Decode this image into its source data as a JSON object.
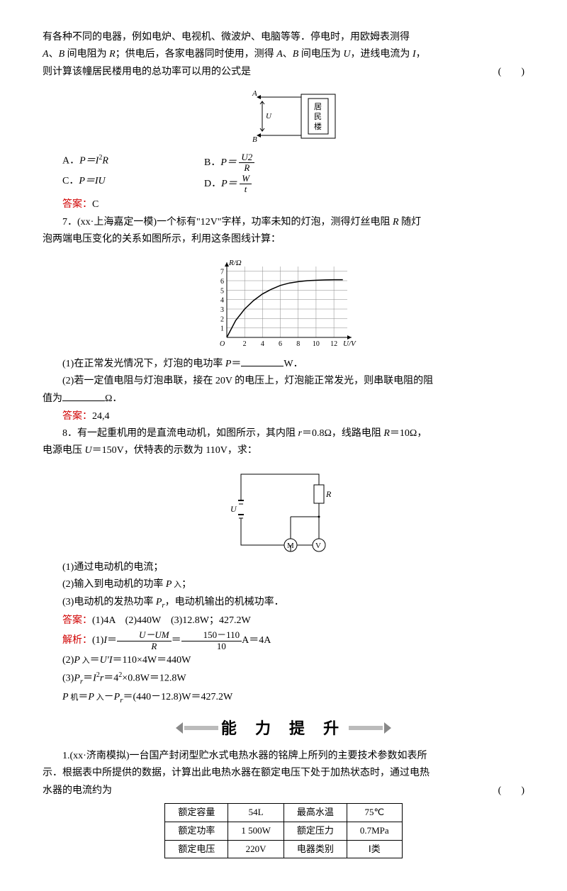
{
  "intro": {
    "l1": "有各种不同的电器，例如电炉、电视机、微波炉、电脑等等．停电时，用欧姆表测得",
    "l2a": "A",
    "l2b": "、",
    "l2c": "B",
    "l2d": " 间电阻为 ",
    "l2e": "R",
    "l2f": "；供电后，各家电器同时使用，测得 ",
    "l2g": "A",
    "l2h": "、",
    "l2i": "B",
    "l2j": " 间电压为 ",
    "l2k": "U",
    "l2l": "，进线电流为 ",
    "l2m": "I",
    "l2n": "，",
    "l3": "则计算该幢居民楼用电的总功率可以用的公式是",
    "paren": "(　　)"
  },
  "fig6": {
    "A": "A",
    "U": "U",
    "B": "B",
    "label1": "居",
    "label2": "民",
    "label3": "楼"
  },
  "q6opts": {
    "A_pre": "A．",
    "A_eq": "P＝I",
    "A_sup": "2",
    "A_post": "R",
    "B_pre": "B．",
    "B_eq": "P＝ ",
    "B_num": "U2",
    "B_den": "R",
    "C_pre": "C．",
    "C_eq": "P＝IU",
    "D_pre": "D．",
    "D_eq": "P＝ ",
    "D_num": "W",
    "D_den": "t"
  },
  "q6ans": {
    "lbl": "答案：",
    "val": "C"
  },
  "q7": {
    "stem1": "7．(xx·上海嘉定一模)一个标有\"12V\"字样，功率未知的灯泡，测得灯丝电阻 ",
    "stemR": "R",
    " stem_mid": " 随灯",
    "stem2": "泡两端电压变化的关系如图所示，利用这条图线计算：",
    "p1a": "(1)在正常发光情况下，灯泡的电功率 ",
    "p1P": "P",
    "p1b": "＝",
    "p1c": "W．",
    "p2a": "(2)若一定值电阻与灯泡串联，接在 20V 的电压上，灯泡能正常发光，则串联电阻的阻",
    "p2b": "值为",
    "p2c": "Ω．",
    "ans_lbl": "答案：",
    "ans_val": "24,4"
  },
  "chart7": {
    "ylab": "R/Ω",
    "xlab": "U/V",
    "yticks": [
      1,
      2,
      3,
      4,
      5,
      6,
      7
    ],
    "xticks": [
      2,
      4,
      6,
      8,
      10,
      12
    ],
    "xmax": 13.5,
    "ymax": 7.5,
    "points": [
      [
        0,
        0
      ],
      [
        1,
        1.8
      ],
      [
        2,
        3.0
      ],
      [
        3,
        3.9
      ],
      [
        4,
        4.6
      ],
      [
        5,
        5.1
      ],
      [
        6,
        5.5
      ],
      [
        7,
        5.75
      ],
      [
        8,
        5.9
      ],
      [
        9,
        6.0
      ],
      [
        10,
        6.05
      ],
      [
        11,
        6.08
      ],
      [
        12,
        6.1
      ],
      [
        13,
        6.1
      ]
    ],
    "grid_color": "#888",
    "axis_color": "#000",
    "line_color": "#000"
  },
  "q8": {
    "stem1": "8．有一起重机用的是直流电动机，如图所示，其内阻 ",
    "r": "r",
    "eq1": "＝0.8Ω，线路电阻 ",
    "R": "R",
    "eq2": "＝10Ω，",
    "stem2a": "电源电压 ",
    "U": "U",
    "stem2b": "＝150V，伏特表的示数为 110V，求：",
    "p1": "(1)通过电动机的电流；",
    "p2a": "(2)输入到电动机的功率 ",
    "p2P": "P",
    "p2sub": " 入",
    "p2b": "；",
    "p3a": "(3)电动机的发热功率 ",
    "p3P": "P",
    "p3r": "r",
    "p3b": "，电动机输出的机械功率．",
    "ans_lbl": "答案：",
    "ans_val": "(1)4A　(2)440W　(3)12.8W；427.2W",
    "sol_lbl": "解析：",
    "s1a": "(1)",
    "s1I": "I",
    "s1b": "＝",
    "s1num": "U－UM",
    "s1den": "R",
    "s1eq": "＝",
    "s1num2": "150－110",
    "s1den2": "10",
    "s1c": "A＝4A",
    "s2a": "(2)",
    "s2P": "P",
    " s2sub": " 入",
    "s2b": "＝",
    "s2U": "U′",
    "s2I": "I",
    "s2c": "＝110×4W＝440W",
    "s3a": "(3)",
    "s3P": "P",
    "s3r": "r",
    "s3b": "＝",
    "s3I": "I",
    "s3sup": "2",
    "s3r2": "r",
    "s3c": "＝4",
    "s3sup2": "2",
    "s3d": "×0.8W＝12.8W",
    "s4P": "P",
    "s4sub": " 机",
    "s4b": "＝",
    "s4P2": "P",
    "s4sub2": " 入",
    "s4c": "－",
    "s4P3": "P",
    "s4r": "r",
    "s4d": "＝(440－12.8)W＝427.2W"
  },
  "fig8": {
    "R": "R",
    "U": "U",
    "M": "M",
    "V": "V"
  },
  "banner": {
    "text": "能 力 提 升"
  },
  "q1": {
    "stem1": "1.(xx·济南模拟)一台国产封闭型贮水式电热水器的铭牌上所列的主要技术参数如表所",
    "stem2": "示．根据表中所提供的数据，计算出此电热水器在额定电压下处于加热状态时，通过电热",
    "stem3": "水器的电流约为",
    "paren": "(　　)"
  },
  "table": {
    "r1c1": "额定容量",
    "r1c2": "54L",
    "r1c3": "最高水温",
    "r1c4": "75℃",
    "r2c1": "额定功率",
    "r2c2": "1 500W",
    "r2c3": "额定压力",
    "r2c4": "0.7MPa",
    "r3c1": "额定电压",
    "r3c2": "220V",
    "r3c3": "电器类别",
    "r3c4": "Ⅰ类"
  }
}
